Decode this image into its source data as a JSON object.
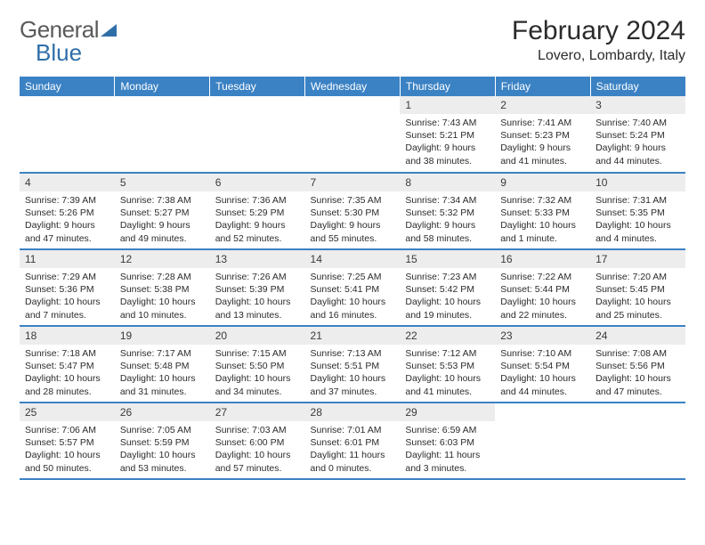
{
  "logo": {
    "part1": "General",
    "part2": "Blue"
  },
  "title": "February 2024",
  "location": "Lovero, Lombardy, Italy",
  "colors": {
    "header_bg": "#3b82c4",
    "header_text": "#ffffff",
    "daynum_bg": "#ededed",
    "row_border": "#3b82c4",
    "logo_blue": "#2f6fa8",
    "text": "#2b2b2b"
  },
  "weekdays": [
    "Sunday",
    "Monday",
    "Tuesday",
    "Wednesday",
    "Thursday",
    "Friday",
    "Saturday"
  ],
  "weeks": [
    [
      null,
      null,
      null,
      null,
      {
        "n": "1",
        "sr": "Sunrise: 7:43 AM",
        "ss": "Sunset: 5:21 PM",
        "dl": "Daylight: 9 hours and 38 minutes."
      },
      {
        "n": "2",
        "sr": "Sunrise: 7:41 AM",
        "ss": "Sunset: 5:23 PM",
        "dl": "Daylight: 9 hours and 41 minutes."
      },
      {
        "n": "3",
        "sr": "Sunrise: 7:40 AM",
        "ss": "Sunset: 5:24 PM",
        "dl": "Daylight: 9 hours and 44 minutes."
      }
    ],
    [
      {
        "n": "4",
        "sr": "Sunrise: 7:39 AM",
        "ss": "Sunset: 5:26 PM",
        "dl": "Daylight: 9 hours and 47 minutes."
      },
      {
        "n": "5",
        "sr": "Sunrise: 7:38 AM",
        "ss": "Sunset: 5:27 PM",
        "dl": "Daylight: 9 hours and 49 minutes."
      },
      {
        "n": "6",
        "sr": "Sunrise: 7:36 AM",
        "ss": "Sunset: 5:29 PM",
        "dl": "Daylight: 9 hours and 52 minutes."
      },
      {
        "n": "7",
        "sr": "Sunrise: 7:35 AM",
        "ss": "Sunset: 5:30 PM",
        "dl": "Daylight: 9 hours and 55 minutes."
      },
      {
        "n": "8",
        "sr": "Sunrise: 7:34 AM",
        "ss": "Sunset: 5:32 PM",
        "dl": "Daylight: 9 hours and 58 minutes."
      },
      {
        "n": "9",
        "sr": "Sunrise: 7:32 AM",
        "ss": "Sunset: 5:33 PM",
        "dl": "Daylight: 10 hours and 1 minute."
      },
      {
        "n": "10",
        "sr": "Sunrise: 7:31 AM",
        "ss": "Sunset: 5:35 PM",
        "dl": "Daylight: 10 hours and 4 minutes."
      }
    ],
    [
      {
        "n": "11",
        "sr": "Sunrise: 7:29 AM",
        "ss": "Sunset: 5:36 PM",
        "dl": "Daylight: 10 hours and 7 minutes."
      },
      {
        "n": "12",
        "sr": "Sunrise: 7:28 AM",
        "ss": "Sunset: 5:38 PM",
        "dl": "Daylight: 10 hours and 10 minutes."
      },
      {
        "n": "13",
        "sr": "Sunrise: 7:26 AM",
        "ss": "Sunset: 5:39 PM",
        "dl": "Daylight: 10 hours and 13 minutes."
      },
      {
        "n": "14",
        "sr": "Sunrise: 7:25 AM",
        "ss": "Sunset: 5:41 PM",
        "dl": "Daylight: 10 hours and 16 minutes."
      },
      {
        "n": "15",
        "sr": "Sunrise: 7:23 AM",
        "ss": "Sunset: 5:42 PM",
        "dl": "Daylight: 10 hours and 19 minutes."
      },
      {
        "n": "16",
        "sr": "Sunrise: 7:22 AM",
        "ss": "Sunset: 5:44 PM",
        "dl": "Daylight: 10 hours and 22 minutes."
      },
      {
        "n": "17",
        "sr": "Sunrise: 7:20 AM",
        "ss": "Sunset: 5:45 PM",
        "dl": "Daylight: 10 hours and 25 minutes."
      }
    ],
    [
      {
        "n": "18",
        "sr": "Sunrise: 7:18 AM",
        "ss": "Sunset: 5:47 PM",
        "dl": "Daylight: 10 hours and 28 minutes."
      },
      {
        "n": "19",
        "sr": "Sunrise: 7:17 AM",
        "ss": "Sunset: 5:48 PM",
        "dl": "Daylight: 10 hours and 31 minutes."
      },
      {
        "n": "20",
        "sr": "Sunrise: 7:15 AM",
        "ss": "Sunset: 5:50 PM",
        "dl": "Daylight: 10 hours and 34 minutes."
      },
      {
        "n": "21",
        "sr": "Sunrise: 7:13 AM",
        "ss": "Sunset: 5:51 PM",
        "dl": "Daylight: 10 hours and 37 minutes."
      },
      {
        "n": "22",
        "sr": "Sunrise: 7:12 AM",
        "ss": "Sunset: 5:53 PM",
        "dl": "Daylight: 10 hours and 41 minutes."
      },
      {
        "n": "23",
        "sr": "Sunrise: 7:10 AM",
        "ss": "Sunset: 5:54 PM",
        "dl": "Daylight: 10 hours and 44 minutes."
      },
      {
        "n": "24",
        "sr": "Sunrise: 7:08 AM",
        "ss": "Sunset: 5:56 PM",
        "dl": "Daylight: 10 hours and 47 minutes."
      }
    ],
    [
      {
        "n": "25",
        "sr": "Sunrise: 7:06 AM",
        "ss": "Sunset: 5:57 PM",
        "dl": "Daylight: 10 hours and 50 minutes."
      },
      {
        "n": "26",
        "sr": "Sunrise: 7:05 AM",
        "ss": "Sunset: 5:59 PM",
        "dl": "Daylight: 10 hours and 53 minutes."
      },
      {
        "n": "27",
        "sr": "Sunrise: 7:03 AM",
        "ss": "Sunset: 6:00 PM",
        "dl": "Daylight: 10 hours and 57 minutes."
      },
      {
        "n": "28",
        "sr": "Sunrise: 7:01 AM",
        "ss": "Sunset: 6:01 PM",
        "dl": "Daylight: 11 hours and 0 minutes."
      },
      {
        "n": "29",
        "sr": "Sunrise: 6:59 AM",
        "ss": "Sunset: 6:03 PM",
        "dl": "Daylight: 11 hours and 3 minutes."
      },
      null,
      null
    ]
  ]
}
